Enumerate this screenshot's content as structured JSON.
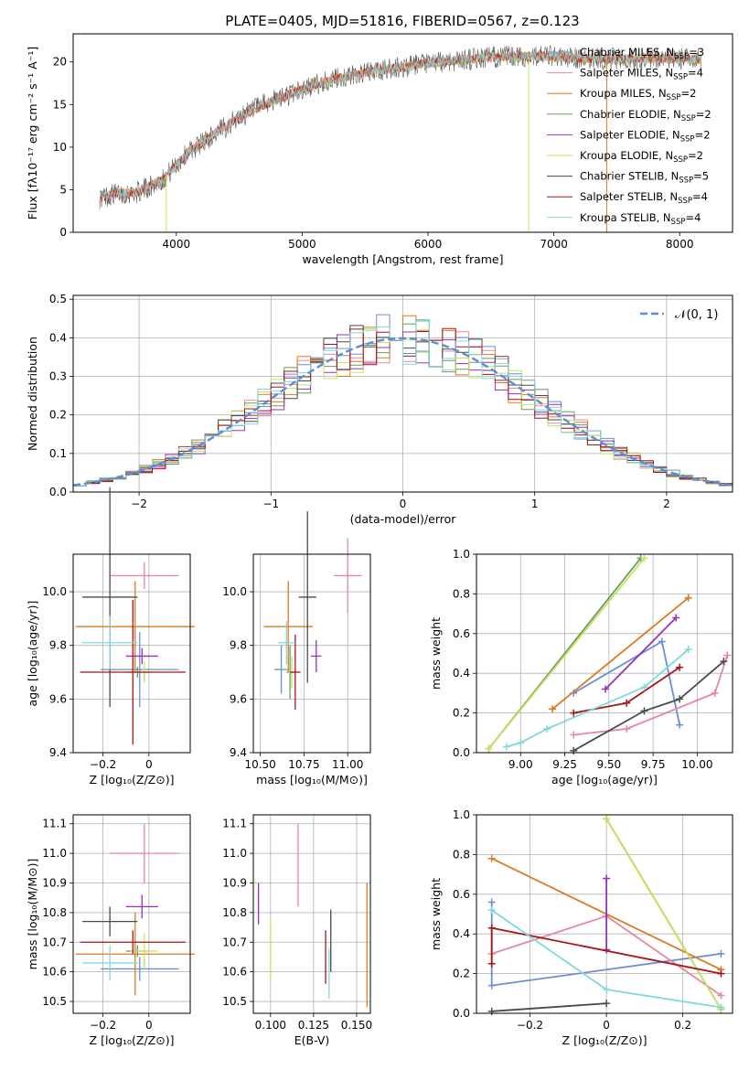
{
  "colors": {
    "chabrier_miles": "#6b8fd6",
    "salpeter_miles": "#e8879f",
    "kroupa_miles": "#e0791f",
    "chabrier_elodie": "#6a9a63",
    "salpeter_elodie": "#9b2fb8",
    "kroupa_elodie": "#c6e35a",
    "chabrier_stelib": "#4a4a4a",
    "salpeter_stelib": "#aa1414",
    "kroupa_stelib": "#7fd8dc",
    "normal_curve": "#5b8ed6",
    "grid": "#b0b0b0"
  },
  "chart_data": [
    {
      "id": "spectrum",
      "type": "line",
      "title": "PLATE=0405, MJD=51816, FIBERID=0567, z=0.123",
      "xlabel": "wavelength [Angstrom, rest frame]",
      "ylabel": "Flux [fλ10⁻¹⁷ erg cm⁻² s⁻¹ A⁻¹]",
      "xlim": [
        3180,
        8420
      ],
      "ylim": [
        0,
        23.3
      ],
      "xticks": [
        4000,
        5000,
        6000,
        7000,
        8000
      ],
      "yticks": [
        0,
        5,
        10,
        15,
        20
      ],
      "grid": false,
      "legend_position": "top-right",
      "legend": [
        {
          "key": "chabrier_miles",
          "text": "Chabrier MILES, N",
          "sub": "SSP",
          "tail": "=3"
        },
        {
          "key": "salpeter_miles",
          "text": "Salpeter MILES, N",
          "sub": "SSP",
          "tail": "=4"
        },
        {
          "key": "kroupa_miles",
          "text": "Kroupa MILES, N",
          "sub": "SSP",
          "tail": "=2"
        },
        {
          "key": "chabrier_elodie",
          "text": "Chabrier ELODIE, N",
          "sub": "SSP",
          "tail": "=2"
        },
        {
          "key": "salpeter_elodie",
          "text": "Salpeter ELODIE, N",
          "sub": "SSP",
          "tail": "=2"
        },
        {
          "key": "kroupa_elodie",
          "text": "Kroupa ELODIE, N",
          "sub": "SSP",
          "tail": "=2"
        },
        {
          "key": "chabrier_stelib",
          "text": "Chabrier STELIB, N",
          "sub": "SSP",
          "tail": "=5"
        },
        {
          "key": "salpeter_stelib",
          "text": "Salpeter STELIB, N",
          "sub": "SSP",
          "tail": "=4"
        },
        {
          "key": "kroupa_stelib",
          "text": "Kroupa STELIB, N",
          "sub": "SSP",
          "tail": "=4"
        }
      ],
      "continuum": {
        "wavelength": [
          3390,
          3500,
          3700,
          3900,
          4100,
          4300,
          4500,
          4700,
          4900,
          5100,
          5300,
          5500,
          5700,
          5900,
          6100,
          6300,
          6500,
          6700,
          6900,
          7100,
          7300,
          7500,
          7700,
          7900,
          8100,
          8170
        ],
        "flux": [
          4.0,
          4.5,
          4.7,
          6.3,
          9.5,
          11.5,
          13.5,
          15.0,
          16.2,
          17.3,
          18.1,
          18.7,
          19.2,
          19.6,
          20.0,
          20.3,
          20.6,
          20.6,
          20.7,
          20.5,
          20.4,
          20.3,
          20.4,
          20.4,
          20.3,
          20.3
        ]
      },
      "drops": [
        {
          "wavelength": 3920,
          "key": "kroupa_elodie"
        },
        {
          "wavelength": 6800,
          "key": "kroupa_elodie"
        },
        {
          "wavelength": 7420,
          "key": "kroupa_miles"
        }
      ]
    },
    {
      "id": "residuals",
      "type": "line",
      "xlabel": "(data-model)/error",
      "ylabel": "Normed distribution",
      "xlim": [
        -2.5,
        2.5
      ],
      "ylim": [
        0,
        0.51
      ],
      "xticks": [
        -2,
        -1,
        0,
        1,
        2
      ],
      "yticks": [
        0.0,
        0.1,
        0.2,
        0.3,
        0.4,
        0.5
      ],
      "grid": true,
      "legend_position": "top-right",
      "legend": [
        {
          "key": "normal_curve",
          "text": "𝒩(0, 1)"
        }
      ],
      "bin_width": 0.1,
      "x_start": -2.5
    },
    {
      "id": "age_vs_z",
      "type": "scatter",
      "xlabel": "Z [log₁₀(Z/Z⊙)]",
      "ylabel": "age  [log₁₀(age/yr)]",
      "xlim": [
        -0.33,
        0.18
      ],
      "ylim": [
        9.4,
        10.14
      ],
      "xticks": [
        -0.2,
        0.0
      ],
      "yticks": [
        9.4,
        9.6,
        9.8,
        10.0
      ],
      "grid": true,
      "points": [
        {
          "key": "chabrier_miles",
          "x": -0.04,
          "y": 9.71,
          "xerr": 0.17,
          "yerr": 0.14
        },
        {
          "key": "salpeter_miles",
          "x": -0.02,
          "y": 10.06,
          "xerr": 0.15,
          "yerr": 0.05
        },
        {
          "key": "kroupa_miles",
          "x": -0.06,
          "y": 9.87,
          "xerr": 0.26,
          "yerr": 0.17
        },
        {
          "key": "chabrier_elodie",
          "x": -0.05,
          "y": 9.7,
          "xerr": 0.05,
          "yerr": 0.02
        },
        {
          "key": "salpeter_elodie",
          "x": -0.03,
          "y": 9.76,
          "xerr": 0.07,
          "yerr": 0.03
        },
        {
          "key": "kroupa_elodie",
          "x": -0.02,
          "y": 9.7,
          "xerr": 0.06,
          "yerr": 0.04
        },
        {
          "key": "chabrier_stelib",
          "x": -0.17,
          "y": 9.98,
          "xerr": 0.12,
          "yerr": 0.41
        },
        {
          "key": "salpeter_stelib",
          "x": -0.07,
          "y": 9.7,
          "xerr": 0.23,
          "yerr": 0.27
        },
        {
          "key": "kroupa_stelib",
          "x": -0.17,
          "y": 9.81,
          "xerr": 0.12,
          "yerr": 0.1
        }
      ]
    },
    {
      "id": "age_vs_mass",
      "type": "scatter",
      "xlabel": "mass [log₁₀(M/M⊙)]",
      "ylabel": "",
      "xlim": [
        10.46,
        11.13
      ],
      "ylim": [
        9.4,
        10.14
      ],
      "xticks": [
        10.5,
        10.75,
        11.0
      ],
      "xticklabels": [
        "10.50",
        "10.75",
        "11.00"
      ],
      "yticks": [
        9.4,
        9.6,
        9.8,
        10.0
      ],
      "grid": true,
      "points": [
        {
          "key": "chabrier_miles",
          "x": 10.62,
          "y": 9.71,
          "xerr": 0.04,
          "yerr": 0.09
        },
        {
          "key": "salpeter_miles",
          "x": 11.0,
          "y": 10.06,
          "xerr": 0.08,
          "yerr": 0.14
        },
        {
          "key": "kroupa_miles",
          "x": 10.66,
          "y": 9.87,
          "xerr": 0.14,
          "yerr": 0.17
        },
        {
          "key": "chabrier_elodie",
          "x": 10.67,
          "y": 9.7,
          "xerr": 0.02,
          "yerr": 0.1
        },
        {
          "key": "salpeter_elodie",
          "x": 10.82,
          "y": 9.76,
          "xerr": 0.03,
          "yerr": 0.06
        },
        {
          "key": "kroupa_elodie",
          "x": 10.68,
          "y": 9.7,
          "xerr": 0.02,
          "yerr": 0.06
        },
        {
          "key": "chabrier_stelib",
          "x": 10.77,
          "y": 9.98,
          "xerr": 0.05,
          "yerr": 0.32
        },
        {
          "key": "salpeter_stelib",
          "x": 10.7,
          "y": 9.7,
          "xerr": 0.03,
          "yerr": 0.14
        },
        {
          "key": "kroupa_stelib",
          "x": 10.65,
          "y": 9.81,
          "xerr": 0.05,
          "yerr": 0.08
        }
      ]
    },
    {
      "id": "weight_vs_age",
      "type": "line",
      "xlabel": "age  [log₁₀(age/yr)]",
      "ylabel": "mass weight",
      "xlim": [
        8.75,
        10.2
      ],
      "ylim": [
        0,
        1.0
      ],
      "xticks": [
        9.0,
        9.25,
        9.5,
        9.75,
        10.0
      ],
      "xticklabels": [
        "9.00",
        "9.25",
        "9.50",
        "9.75",
        "10.00"
      ],
      "yticks": [
        0.0,
        0.2,
        0.4,
        0.6,
        0.8,
        1.0
      ],
      "grid": true,
      "series": [
        {
          "key": "chabrier_miles",
          "x": [
            9.3,
            9.8,
            9.9
          ],
          "y": [
            0.3,
            0.56,
            0.14
          ]
        },
        {
          "key": "salpeter_miles",
          "x": [
            9.3,
            9.6,
            10.1,
            10.17
          ],
          "y": [
            0.09,
            0.12,
            0.3,
            0.49
          ]
        },
        {
          "key": "kroupa_miles",
          "x": [
            9.18,
            9.95
          ],
          "y": [
            0.22,
            0.78
          ]
        },
        {
          "key": "chabrier_elodie",
          "x": [
            8.82,
            9.68
          ],
          "y": [
            0.02,
            0.98
          ]
        },
        {
          "key": "salpeter_elodie",
          "x": [
            9.48,
            9.88
          ],
          "y": [
            0.32,
            0.68
          ]
        },
        {
          "key": "kroupa_elodie",
          "x": [
            8.82,
            9.7
          ],
          "y": [
            0.02,
            0.98
          ]
        },
        {
          "key": "chabrier_stelib",
          "x": [
            9.3,
            9.7,
            9.9,
            10.15
          ],
          "y": [
            0.01,
            0.21,
            0.27,
            0.46
          ]
        },
        {
          "key": "salpeter_stelib",
          "x": [
            9.3,
            9.6,
            9.9
          ],
          "y": [
            0.2,
            0.25,
            0.43
          ]
        },
        {
          "key": "kroupa_stelib",
          "x": [
            8.92,
            9.0,
            9.15,
            9.7,
            9.95
          ],
          "y": [
            0.03,
            0.05,
            0.12,
            0.33,
            0.52
          ]
        }
      ]
    },
    {
      "id": "mass_vs_z",
      "type": "scatter",
      "xlabel": "Z [log₁₀(Z/Z⊙)]",
      "ylabel": "mass [log₁₀(M/M⊙)]",
      "xlim": [
        -0.33,
        0.18
      ],
      "ylim": [
        10.46,
        11.13
      ],
      "xticks": [
        -0.2,
        0.0
      ],
      "yticks": [
        10.5,
        10.6,
        10.7,
        10.8,
        10.9,
        11.0,
        11.1
      ],
      "grid": true,
      "points": [
        {
          "key": "chabrier_miles",
          "x": -0.04,
          "y": 10.61,
          "xerr": 0.17,
          "yerr": 0.04
        },
        {
          "key": "salpeter_miles",
          "x": -0.02,
          "y": 11.0,
          "xerr": 0.15,
          "yerr": 0.1
        },
        {
          "key": "kroupa_miles",
          "x": -0.06,
          "y": 10.66,
          "xerr": 0.26,
          "yerr": 0.14
        },
        {
          "key": "chabrier_elodie",
          "x": -0.05,
          "y": 10.67,
          "xerr": 0.05,
          "yerr": 0.02
        },
        {
          "key": "salpeter_elodie",
          "x": -0.03,
          "y": 10.82,
          "xerr": 0.07,
          "yerr": 0.04
        },
        {
          "key": "kroupa_elodie",
          "x": -0.02,
          "y": 10.67,
          "xerr": 0.06,
          "yerr": 0.06
        },
        {
          "key": "chabrier_stelib",
          "x": -0.17,
          "y": 10.77,
          "xerr": 0.12,
          "yerr": 0.05
        },
        {
          "key": "salpeter_stelib",
          "x": -0.07,
          "y": 10.7,
          "xerr": 0.23,
          "yerr": 0.04
        },
        {
          "key": "kroupa_stelib",
          "x": -0.17,
          "y": 10.63,
          "xerr": 0.12,
          "yerr": 0.06
        }
      ]
    },
    {
      "id": "mass_vs_ebv",
      "type": "scatter",
      "xlabel": "E(B-V)",
      "ylabel": "",
      "xlim": [
        0.09,
        0.158
      ],
      "ylim": [
        10.46,
        11.13
      ],
      "xticks": [
        0.1,
        0.125,
        0.15
      ],
      "xticklabels": [
        "0.100",
        "0.125",
        "0.150"
      ],
      "yticks": [
        10.5,
        10.6,
        10.7,
        10.8,
        10.9,
        11.0,
        11.1
      ],
      "grid": true,
      "segments": [
        {
          "key": "salpeter_elodie",
          "x": 0.093,
          "y1": 10.76,
          "y2": 10.9
        },
        {
          "key": "kroupa_elodie",
          "x": 0.1,
          "y1": 10.58,
          "y2": 10.78
        },
        {
          "key": "salpeter_miles",
          "x": 0.116,
          "y1": 10.82,
          "y2": 11.1
        },
        {
          "key": "salpeter_stelib",
          "x": 0.132,
          "y1": 10.56,
          "y2": 10.74
        },
        {
          "key": "chabrier_stelib",
          "x": 0.135,
          "y1": 10.6,
          "y2": 10.81
        },
        {
          "key": "kroupa_stelib",
          "x": 0.134,
          "y1": 10.51,
          "y2": 10.68
        },
        {
          "key": "kroupa_miles",
          "x": 0.156,
          "y1": 10.48,
          "y2": 10.9
        }
      ]
    },
    {
      "id": "weight_vs_z",
      "type": "line",
      "xlabel": "Z [log₁₀(Z/Z⊙)]",
      "ylabel": "mass weight",
      "xlim": [
        -0.34,
        0.33
      ],
      "ylim": [
        0,
        1.0
      ],
      "xticks": [
        -0.2,
        0.0,
        0.2
      ],
      "yticks": [
        0.0,
        0.2,
        0.4,
        0.6,
        0.8,
        1.0
      ],
      "grid": true,
      "series": [
        {
          "key": "chabrier_miles",
          "x": [
            -0.3,
            -0.3,
            0.3
          ],
          "y": [
            0.56,
            0.14,
            0.3
          ]
        },
        {
          "key": "salpeter_miles",
          "x": [
            -0.3,
            0.0,
            0.3
          ],
          "y": [
            0.3,
            0.49,
            0.09
          ]
        },
        {
          "key": "kroupa_miles",
          "x": [
            -0.3,
            0.3
          ],
          "y": [
            0.78,
            0.22
          ]
        },
        {
          "key": "chabrier_elodie",
          "x": [
            0.0,
            0.3
          ],
          "y": [
            0.98,
            0.02
          ]
        },
        {
          "key": "salpeter_elodie",
          "x": [
            0.0,
            0.0
          ],
          "y": [
            0.68,
            0.32
          ]
        },
        {
          "key": "kroupa_elodie",
          "x": [
            0.0,
            0.3
          ],
          "y": [
            0.98,
            0.02
          ]
        },
        {
          "key": "chabrier_stelib",
          "x": [
            -0.3,
            0.0
          ],
          "y": [
            0.01,
            0.05
          ]
        },
        {
          "key": "salpeter_stelib",
          "x": [
            -0.3,
            -0.3,
            0.3
          ],
          "y": [
            0.25,
            0.43,
            0.2
          ]
        },
        {
          "key": "kroupa_stelib",
          "x": [
            -0.3,
            0.0,
            0.3
          ],
          "y": [
            0.52,
            0.12,
            0.03
          ]
        }
      ]
    }
  ]
}
